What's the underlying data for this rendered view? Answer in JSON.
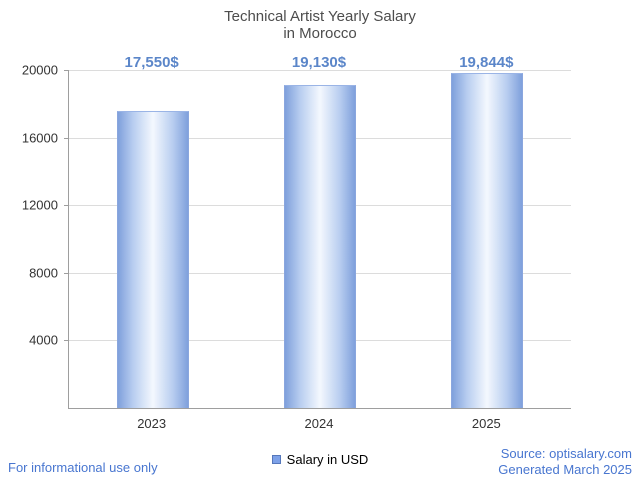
{
  "chart_data": {
    "type": "bar",
    "title": "Technical Artist Yearly Salary",
    "subtitle": "in Morocco",
    "categories": [
      "2023",
      "2024",
      "2025"
    ],
    "values": [
      17550,
      19130,
      19844
    ],
    "value_labels": [
      "17,550$",
      "19,130$",
      "19,844$"
    ],
    "ylim": [
      0,
      20000
    ],
    "yticks": [
      4000,
      8000,
      12000,
      16000,
      20000
    ],
    "grid": true,
    "legend_position": "bottom",
    "bar_color": "#7da1e8",
    "bar_gradient_mid": "#f4f8fe",
    "value_label_color": "#5b86c9"
  },
  "legend": {
    "label": "Salary in USD"
  },
  "footer": {
    "left_note": "For informational use only",
    "source": "Source: optisalary.com",
    "generated": "Generated March 2025"
  }
}
